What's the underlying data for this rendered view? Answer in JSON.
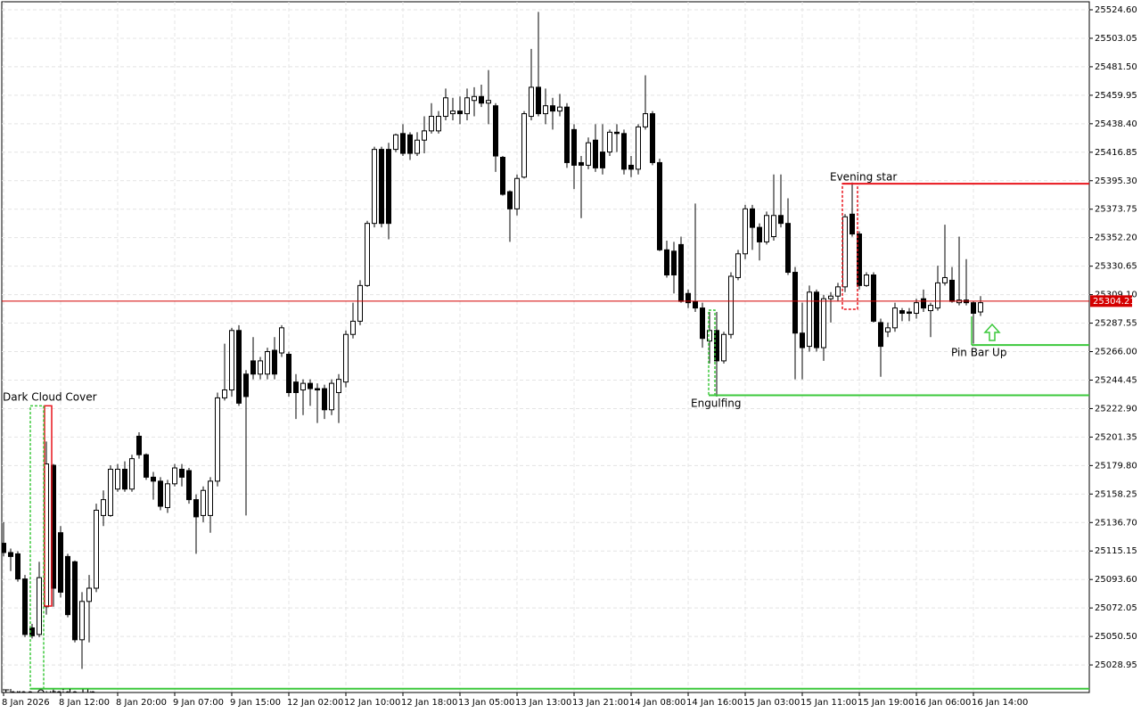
{
  "chart_data": {
    "type": "candlestick",
    "categories": [
      "8 Jan 2026",
      null,
      null,
      null,
      null,
      null,
      null,
      null,
      "8 Jan 12:00",
      null,
      null,
      null,
      null,
      null,
      null,
      null,
      "8 Jan 20:00",
      null,
      null,
      null,
      null,
      null,
      null,
      null,
      "9 Jan 07:00",
      null,
      null,
      null,
      null,
      null,
      null,
      null,
      "9 Jan 15:00",
      null,
      null,
      null,
      null,
      null,
      null,
      null,
      "12 Jan 02:00",
      null,
      null,
      null,
      null,
      null,
      null,
      null,
      "12 Jan 10:00",
      null,
      null,
      null,
      null,
      null,
      null,
      null,
      "12 Jan 18:00",
      null,
      null,
      null,
      null,
      null,
      null,
      null,
      "13 Jan 05:00",
      null,
      null,
      null,
      null,
      null,
      null,
      null,
      "13 Jan 13:00",
      null,
      null,
      null,
      null,
      null,
      null,
      null,
      "13 Jan 21:00",
      null,
      null,
      null,
      null,
      null,
      null,
      null,
      "14 Jan 08:00",
      null,
      null,
      null,
      null,
      null,
      null,
      null,
      "14 Jan 16:00",
      null,
      null,
      null,
      null,
      null,
      null,
      null,
      "15 Jan 03:00",
      null,
      null,
      null,
      null,
      null,
      null,
      null,
      "15 Jan 11:00",
      null,
      null,
      null,
      null,
      null,
      null,
      null,
      "15 Jan 19:00",
      null,
      null,
      null,
      null,
      null,
      null,
      null,
      "16 Jan 06:00",
      null,
      null,
      null,
      null,
      null,
      null,
      null,
      "16 Jan 14:00",
      null
    ],
    "open": [
      25121,
      25114,
      25113,
      25094,
      25057,
      25052,
      25073,
      25180,
      25129,
      25111,
      25107,
      25048,
      25077,
      25087,
      25142,
      25142,
      25162,
      25177,
      25162,
      25202,
      25188,
      25171,
      25168,
      25148,
      25166,
      25177,
      25176,
      25154,
      25142,
      25142,
      25168,
      25231,
      25237,
      25282,
      25249,
      25259,
      25249,
      25249,
      25267,
      25265,
      25264,
      25243,
      25237,
      25242,
      25238,
      25238,
      25222,
      25235,
      25243,
      25279,
      25289,
      25316,
      25363,
      25419,
      25419,
      25419,
      25431,
      25430,
      25416,
      25426,
      25433,
      25433,
      25444,
      25446,
      25448,
      25446,
      25456,
      25459,
      25454,
      25452,
      25413,
      25387,
      25374,
      25398,
      25444,
      25466,
      25446,
      25452,
      25448,
      25451,
      25434,
      25409,
      25407,
      25426,
      25417,
      25417,
      25432,
      25431,
      25407,
      25404,
      25436,
      25446,
      25409,
      25343,
      25342,
      25347,
      25310,
      25304,
      25299,
      25274,
      25282,
      25259,
      25279,
      25322,
      25340,
      25374,
      25360,
      25349,
      25353,
      25369,
      25363,
      25326,
      25280,
      25270,
      25311,
      25269,
      25306,
      25308,
      25315,
      25370,
      25355,
      25316,
      25324,
      25288,
      25281,
      25284,
      25297,
      25296,
      25295,
      25306,
      25297,
      25299,
      25318,
      25320,
      25303,
      25305,
      25303,
      25296
    ],
    "high": [
      25137,
      25117,
      25115,
      25097,
      25060,
      25107,
      25198,
      25181,
      25134,
      25113,
      25108,
      25084,
      25097,
      25151,
      25161,
      25180,
      25181,
      25183,
      25188,
      25205,
      25189,
      25175,
      25171,
      25169,
      25181,
      25181,
      25178,
      25158,
      25164,
      25171,
      25235,
      25272,
      25284,
      25286,
      25252,
      25277,
      25262,
      25269,
      25277,
      25286,
      25266,
      25249,
      25245,
      25245,
      25242,
      25241,
      25245,
      25249,
      25282,
      25303,
      25320,
      25365,
      25421,
      25421,
      25424,
      25431,
      25438,
      25432,
      25432,
      25444,
      25454,
      25448,
      25465,
      25458,
      25459,
      25465,
      25466,
      25468,
      25479,
      25454,
      25414,
      25388,
      25400,
      25448,
      25495,
      25523,
      25465,
      25458,
      25461,
      25454,
      25438,
      25414,
      25428,
      25438,
      25438,
      25434,
      25438,
      25434,
      25414,
      25438,
      25475,
      25448,
      25412,
      25350,
      25349,
      25353,
      25313,
      25378,
      25303,
      25296,
      25296,
      25281,
      25326,
      25343,
      25377,
      25377,
      25363,
      25372,
      25400,
      25400,
      25382,
      25330,
      25303,
      25316,
      25313,
      25309,
      25311,
      25318,
      25370,
      25394,
      25357,
      25326,
      25326,
      25291,
      25288,
      25303,
      25299,
      25299,
      25306,
      25313,
      25303,
      25331,
      25362,
      25330,
      25353,
      25336,
      25304,
      25308
    ],
    "low": [
      25111,
      25100,
      25092,
      25050,
      25049,
      25050,
      25067,
      25073,
      25080,
      25065,
      25046,
      25026,
      25046,
      25084,
      25134,
      25141,
      25160,
      25160,
      25160,
      25185,
      25169,
      25154,
      25146,
      25144,
      25164,
      25164,
      25151,
      25113,
      25137,
      25129,
      25164,
      25229,
      25232,
      25225,
      25142,
      25245,
      25245,
      25245,
      25245,
      25262,
      25232,
      25215,
      25218,
      25225,
      25212,
      25215,
      25218,
      25212,
      25239,
      25276,
      25286,
      25315,
      25360,
      25360,
      25351,
      25417,
      25414,
      25411,
      25414,
      25416,
      25431,
      25431,
      25441,
      25441,
      25438,
      25441,
      25444,
      25451,
      25438,
      25402,
      25384,
      25349,
      25369,
      25397,
      25441,
      25444,
      25438,
      25434,
      25444,
      25405,
      25389,
      25367,
      25404,
      25402,
      25400,
      25414,
      25417,
      25400,
      25398,
      25400,
      25434,
      25407,
      25342,
      25322,
      25310,
      25303,
      25299,
      25296,
      25269,
      25257,
      25232,
      25257,
      25276,
      25320,
      25336,
      25343,
      25335,
      25347,
      25350,
      25360,
      25324,
      25245,
      25245,
      25266,
      25266,
      25259,
      25288,
      25304,
      25311,
      25353,
      25313,
      25315,
      25288,
      25247,
      25277,
      25281,
      25289,
      25289,
      25291,
      25296,
      25277,
      25297,
      25316,
      25303,
      25301,
      25301,
      25272,
      25293
    ],
    "close": [
      25114,
      25111,
      25094,
      25052,
      25051,
      25095,
      25181,
      25087,
      25084,
      25067,
      25048,
      25077,
      25087,
      25146,
      25154,
      25177,
      25177,
      25162,
      25185,
      25188,
      25171,
      25168,
      25149,
      25166,
      25178,
      25171,
      25154,
      25141,
      25161,
      25168,
      25231,
      25237,
      25282,
      25227,
      25232,
      25249,
      25259,
      25266,
      25249,
      25284,
      25235,
      25235,
      25242,
      25238,
      25237,
      25222,
      25242,
      25245,
      25279,
      25289,
      25316,
      25363,
      25419,
      25363,
      25363,
      25430,
      25416,
      25416,
      25426,
      25433,
      25444,
      25444,
      25458,
      25448,
      25446,
      25458,
      25459,
      25454,
      25456,
      25414,
      25385,
      25374,
      25397,
      25446,
      25466,
      25446,
      25452,
      25448,
      25451,
      25409,
      25407,
      25407,
      25424,
      25405,
      25405,
      25432,
      25431,
      25404,
      25404,
      25436,
      25446,
      25409,
      25343,
      25324,
      25324,
      25304,
      25303,
      25299,
      25276,
      25282,
      25259,
      25279,
      25323,
      25340,
      25374,
      25360,
      25349,
      25369,
      25369,
      25363,
      25326,
      25280,
      25269,
      25311,
      25269,
      25306,
      25308,
      25315,
      25368,
      25355,
      25316,
      25324,
      25289,
      25270,
      25284,
      25299,
      25295,
      25295,
      25303,
      25299,
      25301,
      25318,
      25322,
      25304,
      25305,
      25303,
      25295,
      25303
    ],
    "up_color": "#ffffff",
    "down_color": "#000000",
    "current_price": 25304.21,
    "current_price_color": "#d40000",
    "ylim": [
      25008.1,
      25530.67
    ],
    "yticks": [
      {
        "value": 25524.6,
        "label": "25524.60"
      },
      {
        "value": 25503.05,
        "label": "25503.05"
      },
      {
        "value": 25481.5,
        "label": "25481.50"
      },
      {
        "value": 25459.95,
        "label": "25459.95"
      },
      {
        "value": 25438.4,
        "label": "25438.40"
      },
      {
        "value": 25416.85,
        "label": "25416.85"
      },
      {
        "value": 25395.3,
        "label": "25395.30"
      },
      {
        "value": 25373.75,
        "label": "25373.75"
      },
      {
        "value": 25352.2,
        "label": "25352.20"
      },
      {
        "value": 25330.65,
        "label": "25330.65"
      },
      {
        "value": 25309.1,
        "label": "25309.10"
      },
      {
        "value": 25287.55,
        "label": "25287.55"
      },
      {
        "value": 25266,
        "label": "25266.00"
      },
      {
        "value": 25244.45,
        "label": "25244.45"
      },
      {
        "value": 25222.9,
        "label": "25222.90"
      },
      {
        "value": 25201.35,
        "label": "25201.35"
      },
      {
        "value": 25179.8,
        "label": "25179.80"
      },
      {
        "value": 25158.25,
        "label": "25158.25"
      },
      {
        "value": 25136.7,
        "label": "25136.70"
      },
      {
        "value": 25115.15,
        "label": "25115.15"
      },
      {
        "value": 25093.6,
        "label": "25093.60"
      },
      {
        "value": 25072.05,
        "label": "25072.05"
      },
      {
        "value": 25050.5,
        "label": "25050.50"
      },
      {
        "value": 25028.95,
        "label": "25028.95"
      }
    ],
    "grid": true,
    "annotations": [
      {
        "text": "Dark Cloud Cover",
        "color": "#e8141c",
        "level": 25225
      },
      {
        "text": "Evening star",
        "color": "#e8141c",
        "level": 25393
      },
      {
        "text": "Engulfing",
        "color": "#3cc83c",
        "level": 25233
      },
      {
        "text": "Pin Bar Up",
        "color": "#3cc83c",
        "level": 25271
      },
      {
        "text": "Three Outside Up",
        "color": "#3cc83c",
        "level": 25011
      }
    ]
  }
}
